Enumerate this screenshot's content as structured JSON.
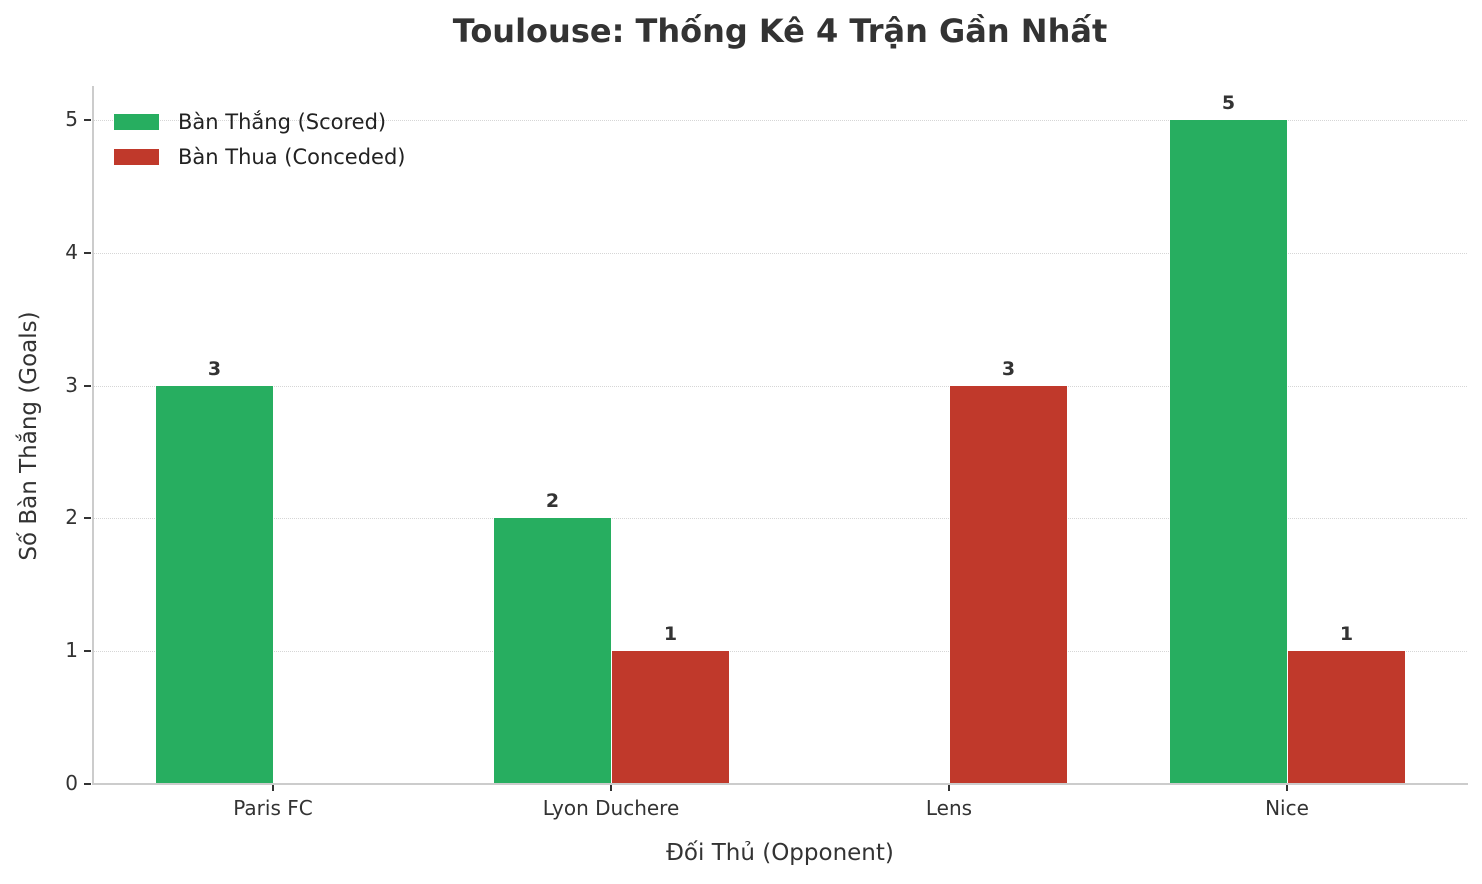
{
  "chart_data": {
    "type": "bar",
    "title": "Toulouse: Thống Kê 4 Trận Gần Nhất",
    "xlabel": "Đối Thủ (Opponent)",
    "ylabel": "Số Bàn Thắng (Goals)",
    "categories": [
      "Paris FC",
      "Lyon Duchere",
      "Lens",
      "Nice"
    ],
    "series": [
      {
        "name": "Bàn Thắng (Scored)",
        "color": "#27ae60",
        "values": [
          3,
          2,
          0,
          5
        ]
      },
      {
        "name": "Bàn Thua (Conceded)",
        "color": "#c0392b",
        "values": [
          0,
          1,
          3,
          1
        ]
      }
    ],
    "ylim": [
      0,
      5.25
    ],
    "yticks": [
      0,
      1,
      2,
      3,
      4,
      5
    ],
    "grid": {
      "y": true,
      "x": false,
      "style": "dotted"
    },
    "legend_position": "upper left",
    "data_labels": "shown for non-zero values"
  },
  "title": "Toulouse: Thống Kê 4 Trận Gần Nhất",
  "axes": {
    "xlabel": "Đối Thủ (Opponent)",
    "ylabel": "Số Bàn Thắng (Goals)",
    "yticks": [
      "0",
      "1",
      "2",
      "3",
      "4",
      "5"
    ],
    "xticks": [
      "Paris FC",
      "Lyon Duchere",
      "Lens",
      "Nice"
    ]
  },
  "legend": [
    {
      "label": "Bàn Thắng (Scored)",
      "color": "#27ae60"
    },
    {
      "label": "Bàn Thua (Conceded)",
      "color": "#c0392b"
    }
  ],
  "bar_labels": {
    "scored": [
      "3",
      "2",
      "",
      "5"
    ],
    "conceded": [
      "",
      "1",
      "3",
      "1"
    ]
  }
}
